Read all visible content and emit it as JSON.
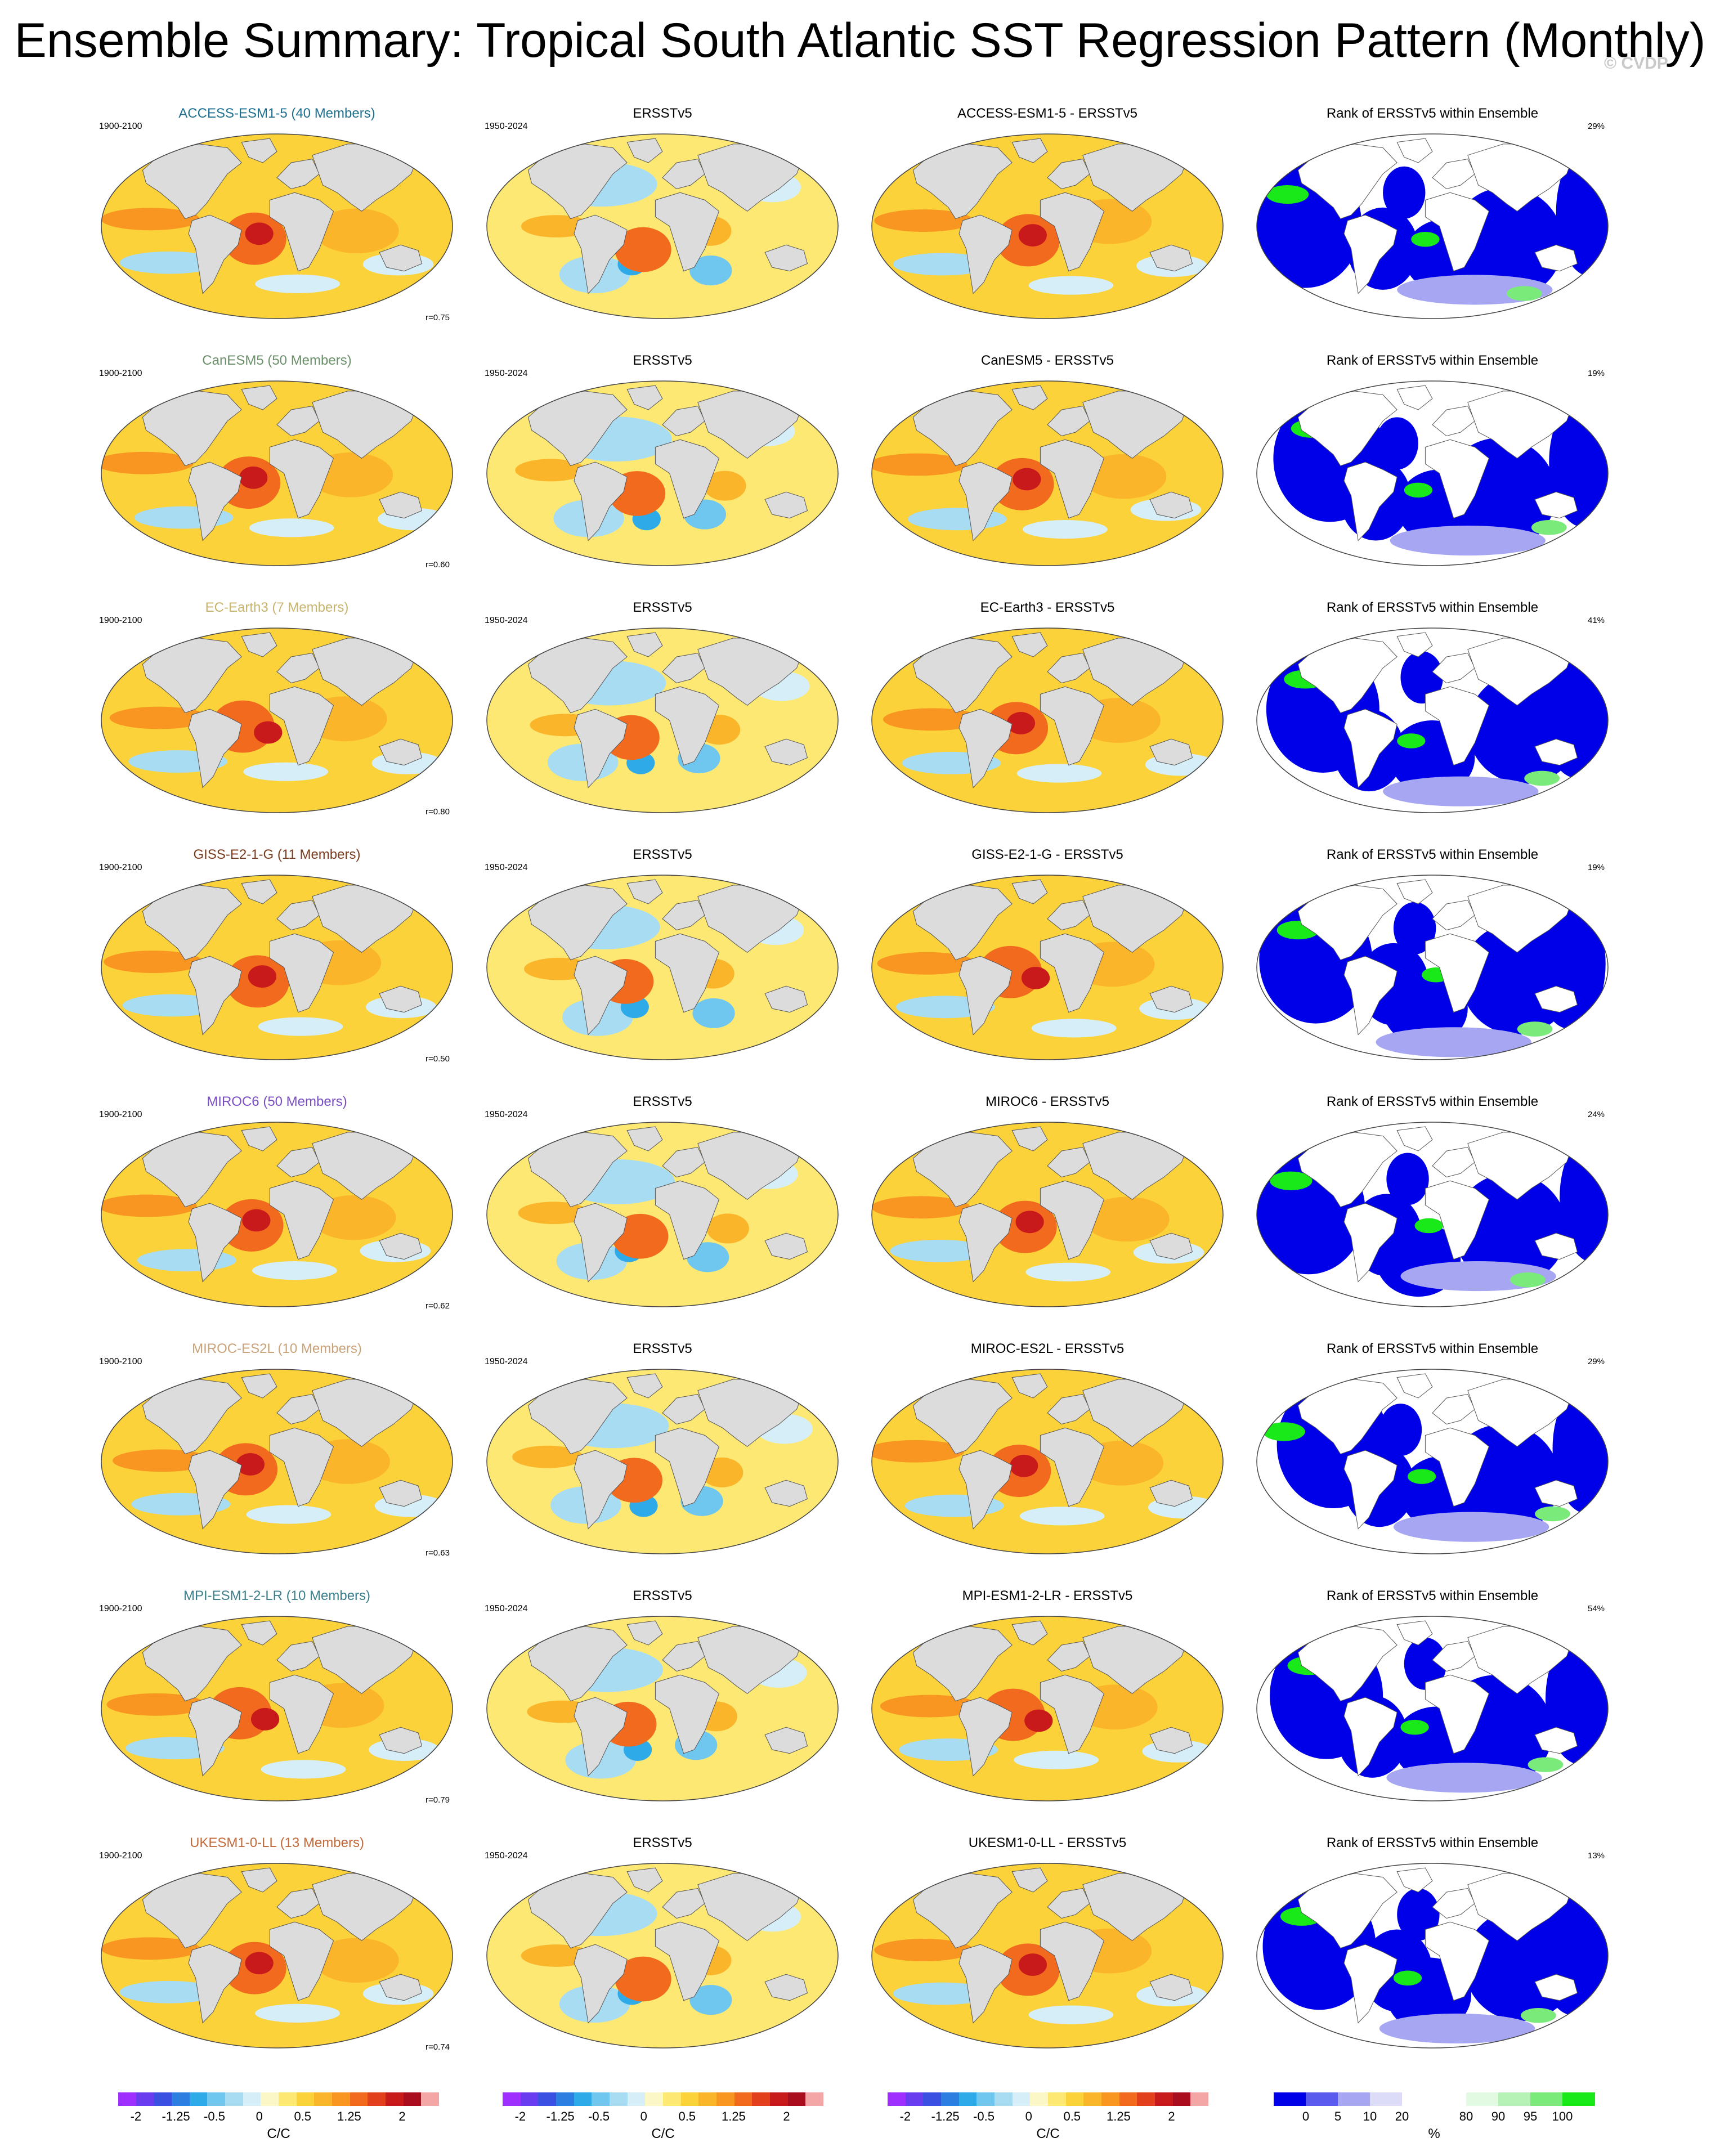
{
  "title": "Ensemble Summary: Tropical South Atlantic SST Regression Pattern (Monthly)",
  "watermark": "© CVDP",
  "column_titles": {
    "obs": "ERSSTv5",
    "rank": "Rank of ERSSTv5 within Ensemble"
  },
  "periods": {
    "model": "1900-2100",
    "obs": "1950-2024"
  },
  "rows": [
    {
      "name": "ACCESS-ESM1-5 (40 Members)",
      "diff_title": "ACCESS-ESM1-5 - ERSSTv5",
      "corr": "r=0.75",
      "rank_pct": "29%",
      "title_color": "#1f6f8f"
    },
    {
      "name": "CanESM5 (50 Members)",
      "diff_title": "CanESM5 - ERSSTv5",
      "corr": "r=0.60",
      "rank_pct": "19%",
      "title_color": "#6a8f6a"
    },
    {
      "name": "EC-Earth3 (7 Members)",
      "diff_title": "EC-Earth3 - ERSSTv5",
      "corr": "r=0.80",
      "rank_pct": "41%",
      "title_color": "#c8b46e"
    },
    {
      "name": "GISS-E2-1-G (11 Members)",
      "diff_title": "GISS-E2-1-G - ERSSTv5",
      "corr": "r=0.50",
      "rank_pct": "19%",
      "title_color": "#7a3b1e"
    },
    {
      "name": "MIROC6 (50 Members)",
      "diff_title": "MIROC6 - ERSSTv5",
      "corr": "r=0.62",
      "rank_pct": "24%",
      "title_color": "#7b4fc4"
    },
    {
      "name": "MIROC-ES2L (10 Members)",
      "diff_title": "MIROC-ES2L - ERSSTv5",
      "corr": "r=0.63",
      "rank_pct": "29%",
      "title_color": "#c9a27a"
    },
    {
      "name": "MPI-ESM1-2-LR (10 Members)",
      "diff_title": "MPI-ESM1-2-LR - ERSSTv5",
      "corr": "r=0.79",
      "rank_pct": "54%",
      "title_color": "#3c7f8c"
    },
    {
      "name": "UKESM1-0-LL (13 Members)",
      "diff_title": "UKESM1-0-LL - ERSSTv5",
      "corr": "r=0.74",
      "rank_pct": "13%",
      "title_color": "#c26a3a"
    }
  ],
  "colorbar_sst": {
    "ticks": [
      "-2",
      "-1.25",
      "-0.5",
      "0",
      "0.5",
      "1.25",
      "2"
    ],
    "unit": "C/C",
    "colors": [
      "#9f2fff",
      "#6a3cf0",
      "#3a50e0",
      "#2c7fe0",
      "#2faae8",
      "#6fc6ee",
      "#a8dcf3",
      "#d6eef8",
      "#fbf7c7",
      "#fde873",
      "#fcd23a",
      "#fbb52a",
      "#f99521",
      "#f26a1e",
      "#e23f1c",
      "#c81a1a",
      "#a80e1e",
      "#f4a6a6"
    ]
  },
  "colorbar_rank": {
    "ticks": [
      "0",
      "5",
      "10",
      "20",
      "80",
      "90",
      "95",
      "100"
    ],
    "unit": "%",
    "colors": [
      "#0000e8",
      "#5a5aee",
      "#a6a6f2",
      "#dcdcf8",
      "#ffffff",
      "#ffffff",
      "#e2fae2",
      "#b6f2b6",
      "#7aea7a",
      "#19e819"
    ]
  }
}
